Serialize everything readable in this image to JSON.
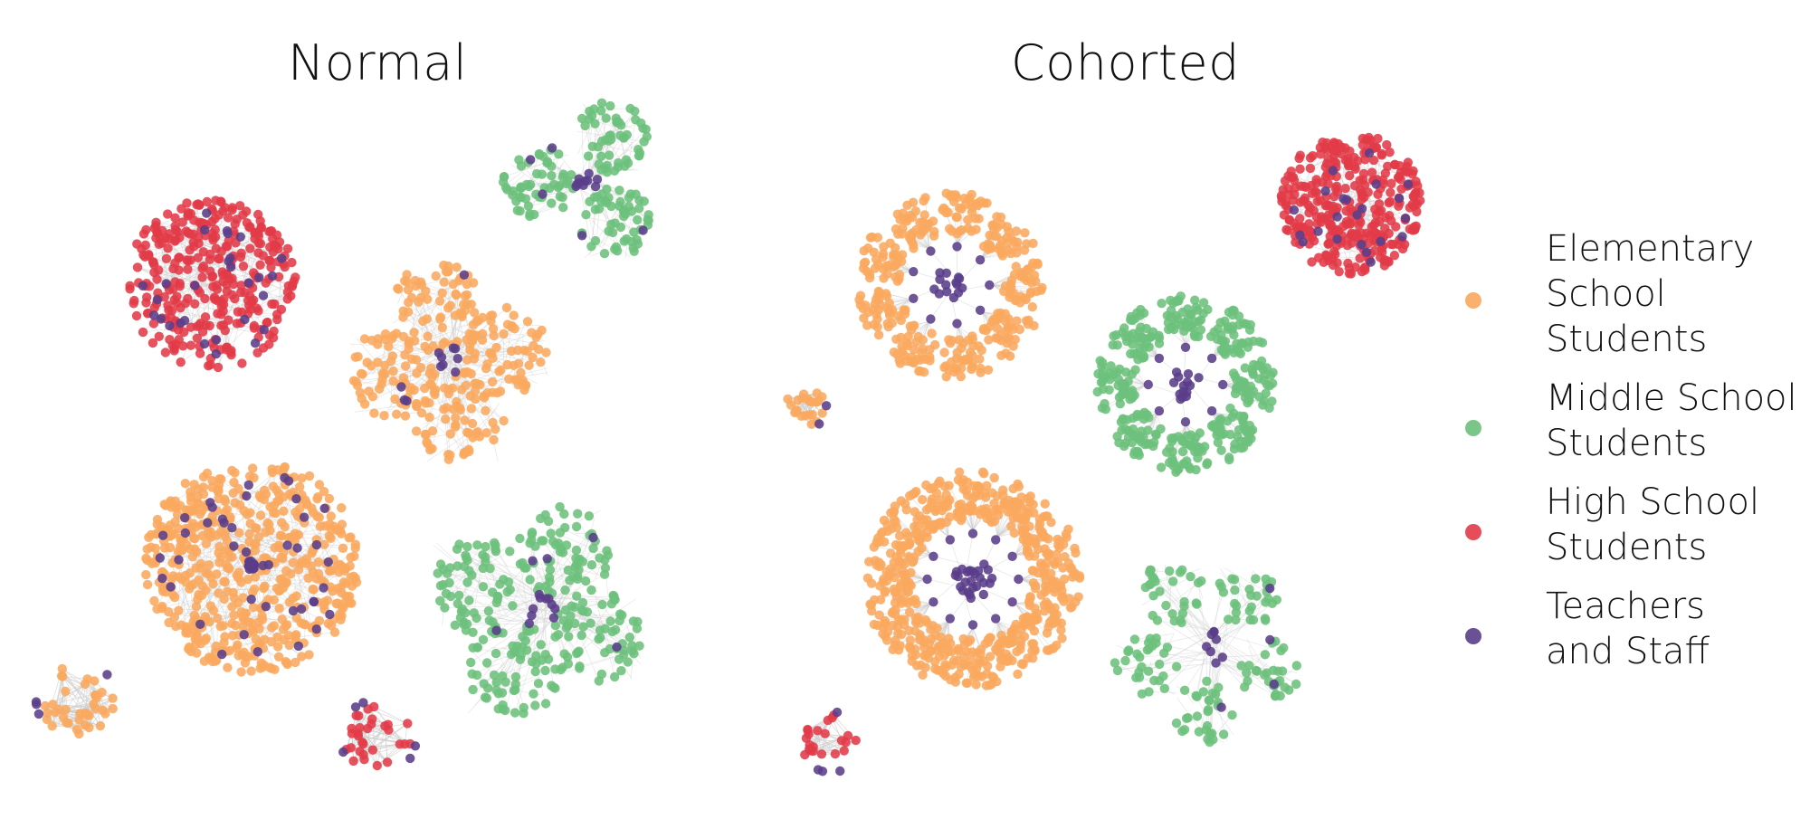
{
  "titles": {
    "left": "Normal",
    "right": "Cohorted"
  },
  "colors": {
    "elementary": "#f9a85e",
    "middle": "#6cc07c",
    "high": "#e33a48",
    "staff": "#5a3d8a",
    "edge": "#cfcfcf"
  },
  "legend": [
    {
      "key": "elementary",
      "label": "Elementary\nSchool\nStudents"
    },
    {
      "key": "middle",
      "label": "Middle School\nStudents"
    },
    {
      "key": "high",
      "label": "High School\nStudents"
    },
    {
      "key": "staff",
      "label": "Teachers\nand Staff"
    }
  ]
}
